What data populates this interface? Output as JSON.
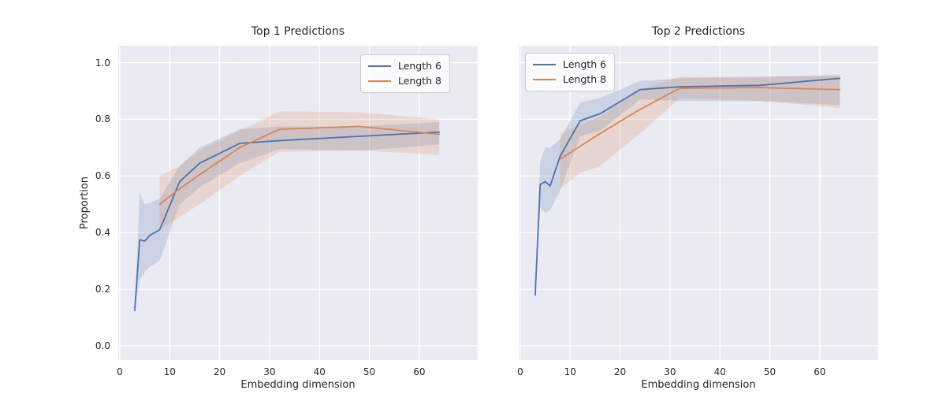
{
  "figure": {
    "background": "#ffffff",
    "axes_background": "#eaeaf2",
    "grid_color": "#ffffff",
    "text_color": "#262626"
  },
  "chart_data": [
    {
      "type": "line",
      "title": "Top 1 Predictions",
      "xlabel": "Embedding dimension",
      "ylabel": "Proportion",
      "grid": true,
      "legend_position": "top-right",
      "xlim": [
        -0.3,
        71.7
      ],
      "ylim": [
        -0.05,
        1.06
      ],
      "xticks": [
        0,
        10,
        20,
        30,
        40,
        50,
        60
      ],
      "yticks": [
        0.0,
        0.2,
        0.4,
        0.6,
        0.8,
        1.0
      ],
      "ytick_labels_visible": true,
      "band_opacity": 0.2,
      "series": [
        {
          "name": "Length 6",
          "color": "#4c72b0",
          "x": [
            3,
            4,
            5,
            6,
            8,
            12,
            16,
            24,
            32,
            48,
            64
          ],
          "y": [
            0.125,
            0.375,
            0.37,
            0.39,
            0.41,
            0.58,
            0.645,
            0.715,
            0.725,
            0.74,
            0.755
          ],
          "band_lo": [
            0.125,
            0.235,
            0.26,
            0.28,
            0.3,
            0.5,
            0.56,
            0.645,
            0.695,
            0.69,
            0.71
          ],
          "band_hi": [
            0.125,
            0.54,
            0.5,
            0.505,
            0.52,
            0.635,
            0.7,
            0.765,
            0.775,
            0.775,
            0.79
          ]
        },
        {
          "name": "Length 8",
          "color": "#dd8452",
          "x": [
            8,
            12,
            16,
            24,
            32,
            48,
            64
          ],
          "y": [
            0.5,
            0.555,
            0.605,
            0.7,
            0.765,
            0.775,
            0.747
          ],
          "band_lo": [
            0.41,
            0.455,
            0.5,
            0.6,
            0.685,
            0.69,
            0.675
          ],
          "band_hi": [
            0.6,
            0.635,
            0.69,
            0.76,
            0.828,
            0.825,
            0.8
          ]
        }
      ]
    },
    {
      "type": "line",
      "title": "Top 2 Predictions",
      "xlabel": "Embedding dimension",
      "ylabel": "",
      "grid": true,
      "legend_position": "top-left",
      "xlim": [
        -0.3,
        71.7
      ],
      "ylim": [
        -0.05,
        1.06
      ],
      "xticks": [
        0,
        10,
        20,
        30,
        40,
        50,
        60
      ],
      "yticks": [
        0.0,
        0.2,
        0.4,
        0.6,
        0.8,
        1.0
      ],
      "ytick_labels_visible": false,
      "band_opacity": 0.2,
      "series": [
        {
          "name": "Length 6",
          "color": "#4c72b0",
          "x": [
            3,
            4,
            5,
            6,
            8,
            12,
            16,
            24,
            32,
            48,
            64
          ],
          "y": [
            0.18,
            0.57,
            0.58,
            0.565,
            0.67,
            0.795,
            0.82,
            0.905,
            0.915,
            0.92,
            0.945
          ],
          "band_lo": [
            0.18,
            0.49,
            0.47,
            0.48,
            0.55,
            0.74,
            0.76,
            0.87,
            0.865,
            0.865,
            0.85
          ],
          "band_hi": [
            0.18,
            0.65,
            0.7,
            0.7,
            0.73,
            0.86,
            0.875,
            0.935,
            0.945,
            0.95,
            0.955
          ]
        },
        {
          "name": "Length 8",
          "color": "#dd8452",
          "x": [
            8,
            12,
            16,
            24,
            32,
            48,
            64
          ],
          "y": [
            0.66,
            0.705,
            0.75,
            0.835,
            0.91,
            0.912,
            0.905
          ],
          "band_lo": [
            0.555,
            0.61,
            0.635,
            0.75,
            0.875,
            0.865,
            0.84
          ],
          "band_hi": [
            0.75,
            0.78,
            0.81,
            0.905,
            0.95,
            0.95,
            0.957
          ]
        }
      ]
    }
  ]
}
